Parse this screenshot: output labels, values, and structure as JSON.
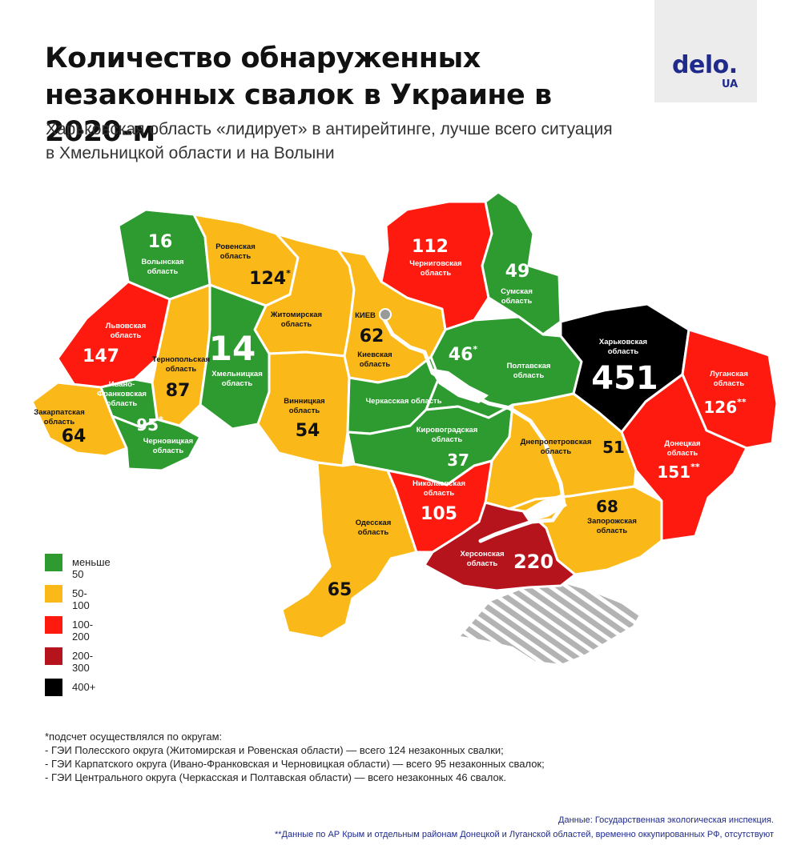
{
  "header": {
    "title_line1": "Количество обнаруженных",
    "title_line2": "незаконных свалок в Украине в 2020-м",
    "subtitle_line1": "Харьковская область «лидирует» в антирейтинге, лучше всего ситуация",
    "subtitle_line2": "в Хмельницкой области и на Волыни"
  },
  "logo": {
    "main": "delo.",
    "sub": "UA"
  },
  "colors": {
    "green": "#2e9b31",
    "yellow": "#fbb919",
    "red": "#ff1a10",
    "darkred": "#b5141d",
    "black": "#000000",
    "crimea_hatch": "#b3b3b3"
  },
  "map": {
    "capital": {
      "label": "КИЕВ",
      "icon": "capital-dot-icon"
    },
    "regions": [
      {
        "id": "volyn",
        "name1": "Волынская",
        "name2": "область",
        "value": "16",
        "mark": "",
        "color": "green"
      },
      {
        "id": "rivne",
        "name1": "Ровенская",
        "name2": "область",
        "value": "124",
        "mark": "*",
        "color": "yellow"
      },
      {
        "id": "lviv",
        "name1": "Львовская",
        "name2": "область",
        "value": "147",
        "mark": "",
        "color": "red"
      },
      {
        "id": "ternopil",
        "name1": "Тернопольская",
        "name2": "область",
        "value": "87",
        "mark": "",
        "color": "yellow"
      },
      {
        "id": "khmelnytskyi",
        "name1": "Хмельницкая",
        "name2": "область",
        "value": "14",
        "mark": "",
        "color": "green"
      },
      {
        "id": "zhytomyr",
        "name1": "Житомирская",
        "name2": "область",
        "value": "",
        "mark": "",
        "color": "yellow"
      },
      {
        "id": "kyiv_city",
        "name1": "",
        "name2": "",
        "value": "62",
        "mark": "",
        "color": "yellow"
      },
      {
        "id": "kyiv_oblast",
        "name1": "Киевская",
        "name2": "область",
        "value": "",
        "mark": "",
        "color": "yellow"
      },
      {
        "id": "chernihiv",
        "name1": "Черниговская",
        "name2": "область",
        "value": "112",
        "mark": "",
        "color": "red"
      },
      {
        "id": "sumy",
        "name1": "Сумская",
        "name2": "область",
        "value": "49",
        "mark": "",
        "color": "green"
      },
      {
        "id": "poltava",
        "name1": "Полтавская",
        "name2": "область",
        "value": "46",
        "mark": "*",
        "color": "green"
      },
      {
        "id": "kharkiv",
        "name1": "Харьковская",
        "name2": "область",
        "value": "451",
        "mark": "",
        "color": "black"
      },
      {
        "id": "luhansk",
        "name1": "Луганская",
        "name2": "область",
        "value": "126",
        "mark": "**",
        "color": "red"
      },
      {
        "id": "donetsk",
        "name1": "Донецкая",
        "name2": "область",
        "value": "151",
        "mark": "**",
        "color": "red"
      },
      {
        "id": "zakarpattia",
        "name1": "Закарпатская",
        "name2": "область",
        "value": "64",
        "mark": "",
        "color": "yellow"
      },
      {
        "id": "ivano_frankivsk",
        "name1": "Ивано-",
        "name2": "Франковская",
        "name3": "область",
        "value": "95",
        "mark": "*",
        "color": "green"
      },
      {
        "id": "chernivtsi",
        "name1": "Черновицкая",
        "name2": "область",
        "value": "",
        "mark": "",
        "color": "green"
      },
      {
        "id": "vinnytsia",
        "name1": "Винницкая",
        "name2": "область",
        "value": "54",
        "mark": "",
        "color": "yellow"
      },
      {
        "id": "cherkasy",
        "name1": "Черкасская область",
        "name2": "",
        "value": "",
        "mark": "",
        "color": "green"
      },
      {
        "id": "kirovohrad",
        "name1": "Кировоградская",
        "name2": "область",
        "value": "37",
        "mark": "",
        "color": "green"
      },
      {
        "id": "dnipro",
        "name1": "Днепропетровская",
        "name2": "область",
        "value": "51",
        "mark": "",
        "color": "yellow"
      },
      {
        "id": "odesa",
        "name1": "Одесская",
        "name2": "область",
        "value": "65",
        "mark": "",
        "color": "yellow"
      },
      {
        "id": "mykolaiv",
        "name1": "Николаевская",
        "name2": "область",
        "value": "105",
        "mark": "",
        "color": "red"
      },
      {
        "id": "zaporizhzhia",
        "name1": "Запорожская",
        "name2": "область",
        "value": "68",
        "mark": "",
        "color": "yellow"
      },
      {
        "id": "kherson",
        "name1": "Херсонская",
        "name2": "область",
        "value": "220",
        "mark": "",
        "color": "darkred"
      }
    ]
  },
  "legend": [
    {
      "label": "меньше 50",
      "color": "#2e9b31"
    },
    {
      "label": "50-100",
      "color": "#fbb919"
    },
    {
      "label": "100-200",
      "color": "#ff1a10"
    },
    {
      "label": "200-300",
      "color": "#b5141d"
    },
    {
      "label": "400+",
      "color": "#000000"
    }
  ],
  "notes": {
    "line1": "*подсчет осуществлялся по округам:",
    "line2": "- ГЭИ Полесского округа (Житомирская и Ровенская области) — всего 124 незаконных свалки;",
    "line3": "- ГЭИ Карпатского округа (Ивано-Франковская и Черновицкая области) — всего 95 незаконных свалок;",
    "line4": "- ГЭИ Центрального округа (Черкасская и Полтавская области) — всего незаконных 46 свалок."
  },
  "footer": {
    "source": "Данные: Государственная экологическая инспекция.",
    "note2": "**Данные по АР Крым и отдельным районам Донецкой и Луганской областей, временно оккупированных РФ, отсутствуют"
  }
}
